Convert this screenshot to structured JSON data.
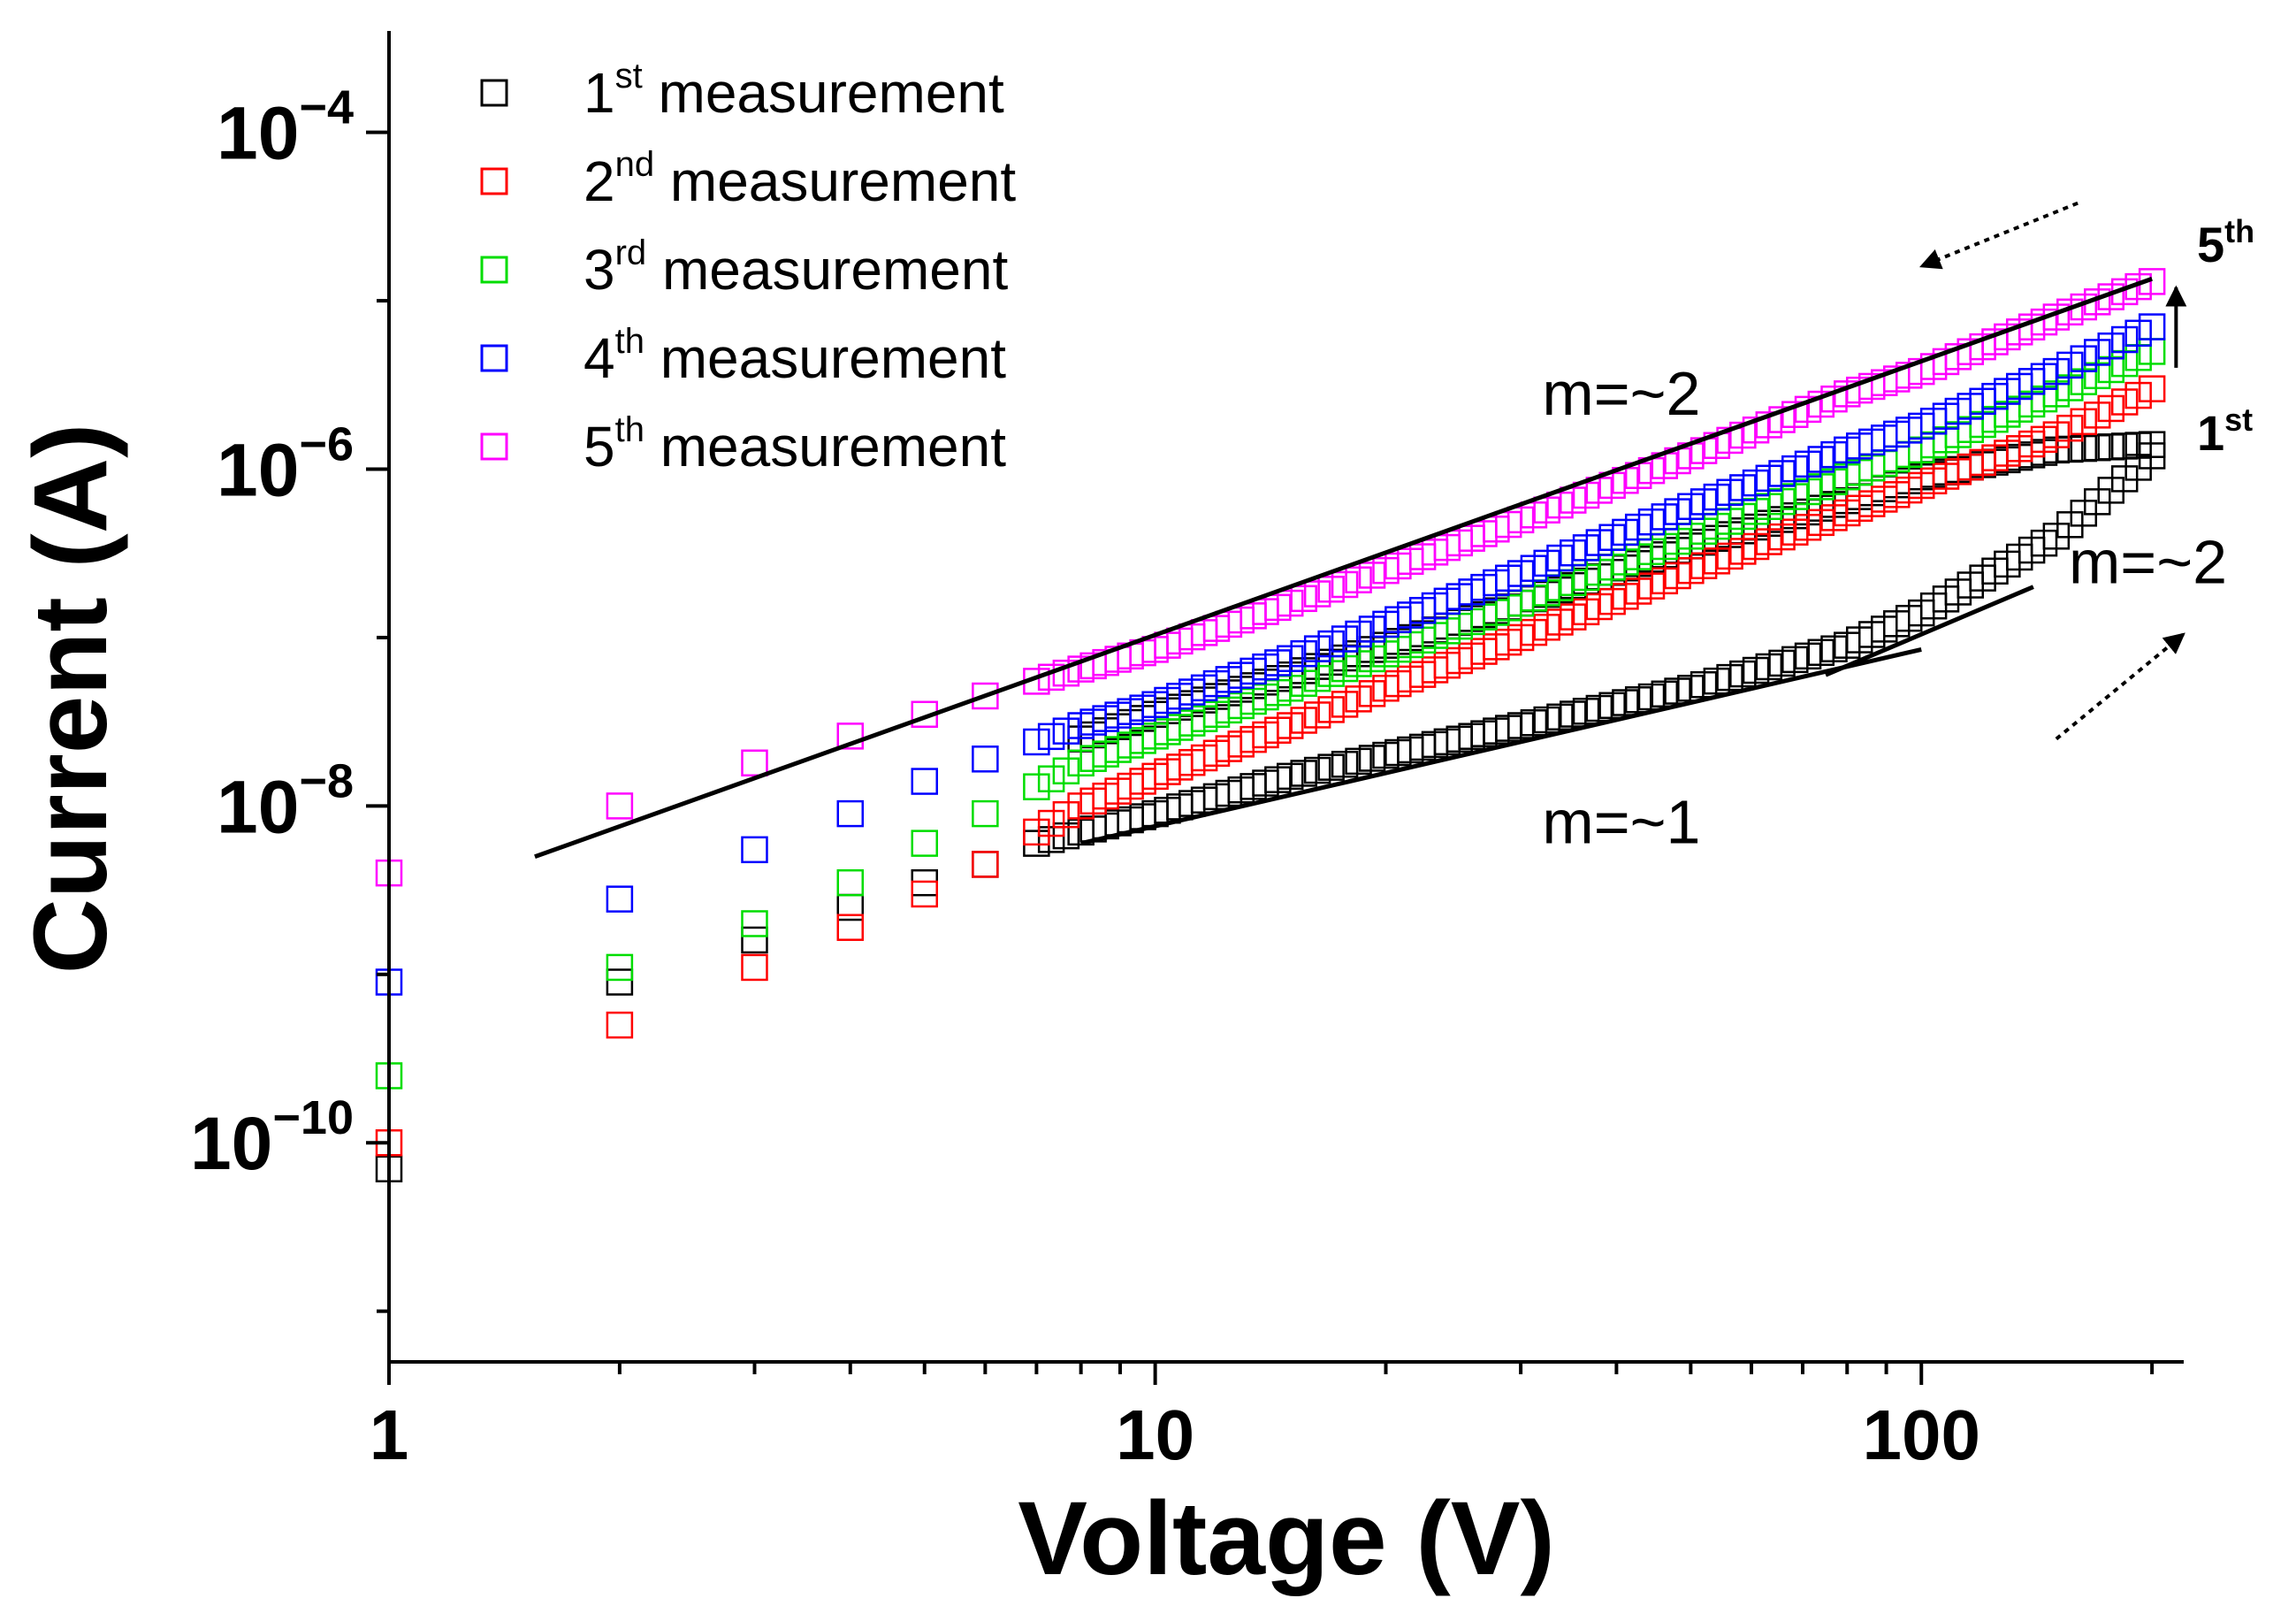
{
  "chart_data": {
    "type": "scatter",
    "title": "",
    "xlabel": "Voltage (V)",
    "ylabel": "Current (A)",
    "xscale": "log",
    "yscale": "log",
    "xlim": [
      1,
      220
    ],
    "ylim": [
      5e-12,
      0.0004
    ],
    "x_ticks": [
      {
        "value": 1,
        "label": "1"
      },
      {
        "value": 10,
        "label": "10"
      },
      {
        "value": 100,
        "label": "100"
      }
    ],
    "y_ticks": [
      {
        "value": 1e-10,
        "mantissa": "10",
        "exponent": "−10"
      },
      {
        "value": 1e-08,
        "mantissa": "10",
        "exponent": "−8"
      },
      {
        "value": 1e-06,
        "mantissa": "10",
        "exponent": "−6"
      },
      {
        "value": 0.0001,
        "mantissa": "10",
        "exponent": "−4"
      }
    ],
    "legend_position": "top-left",
    "marker": "open-square",
    "series": [
      {
        "name": "1st measurement",
        "num": "1",
        "sup": "st",
        "rest": " measurement",
        "color": "#000000",
        "x": [
          1,
          2,
          3,
          4,
          5,
          6,
          7,
          8,
          10,
          15,
          20,
          30,
          50,
          80,
          100,
          150,
          200,
          200,
          150,
          100,
          80,
          50,
          30,
          20,
          15,
          10,
          8
        ],
        "y": [
          7e-11,
          9e-10,
          1.6e-09,
          2.5e-09,
          3.5e-09,
          4.5e-09,
          6e-09,
          7e-09,
          9e-09,
          1.5e-08,
          2e-08,
          3e-08,
          5e-08,
          9e-08,
          1.4e-07,
          4e-07,
          1.2e-06,
          1.4e-06,
          1.3e-06,
          9e-07,
          6.5e-07,
          3.5e-07,
          1.6e-07,
          9e-08,
          6e-08,
          3.5e-08,
          2.5e-08
        ]
      },
      {
        "name": "2nd measurement",
        "num": "2",
        "sup": "nd",
        "rest": " measurement",
        "color": "#ff0000",
        "x": [
          1,
          2,
          3,
          4,
          5,
          6,
          7,
          8,
          10,
          15,
          20,
          30,
          50,
          80,
          100,
          150,
          200
        ],
        "y": [
          1e-10,
          5e-10,
          1.1e-09,
          1.9e-09,
          3e-09,
          4.5e-09,
          7e-09,
          1e-08,
          1.5e-08,
          3e-08,
          5e-08,
          1e-07,
          2.5e-07,
          5.5e-07,
          8e-07,
          1.6e-06,
          3e-06
        ]
      },
      {
        "name": "3rd measurement",
        "num": "3",
        "sup": "rd",
        "rest": " measurement",
        "color": "#00dd00",
        "x": [
          1,
          2,
          3,
          4,
          5,
          6,
          7,
          8,
          10,
          15,
          20,
          30,
          50,
          80,
          100,
          150,
          200
        ],
        "y": [
          2.5e-10,
          1.1e-09,
          2e-09,
          3.5e-09,
          6e-09,
          9e-09,
          1.3e-08,
          1.8e-08,
          2.6e-08,
          5e-08,
          8e-08,
          1.6e-07,
          4e-07,
          9e-07,
          1.3e-06,
          2.8e-06,
          5e-06
        ]
      },
      {
        "name": "4th measurement",
        "num": "4",
        "sup": "th",
        "rest": " measurement",
        "color": "#0000ff",
        "x": [
          1,
          2,
          3,
          4,
          5,
          6,
          7,
          8,
          10,
          15,
          20,
          30,
          50,
          80,
          100,
          150,
          200
        ],
        "y": [
          9e-10,
          2.8e-09,
          5.5e-09,
          9e-09,
          1.4e-08,
          1.9e-08,
          2.4e-08,
          3e-08,
          4e-08,
          7.5e-08,
          1.2e-07,
          2.4e-07,
          6e-07,
          1.3e-06,
          1.8e-06,
          3.8e-06,
          7e-06
        ]
      },
      {
        "name": "5th measurement",
        "num": "5",
        "sup": "th",
        "rest": " measurement",
        "color": "#ff00ff",
        "x": [
          1,
          2,
          3,
          4,
          5,
          6,
          7,
          8,
          10,
          15,
          20,
          30,
          50,
          80,
          100,
          150,
          200
        ],
        "y": [
          4e-09,
          1e-08,
          1.8e-08,
          2.6e-08,
          3.5e-08,
          4.5e-08,
          5.5e-08,
          6.5e-08,
          8.5e-08,
          1.6e-07,
          2.5e-07,
          5e-07,
          1.2e-06,
          2.8e-06,
          3.8e-06,
          8e-06,
          1.3e-05
        ]
      }
    ],
    "fit_lines": [
      {
        "name": "fit-5th-m2",
        "x": [
          1.55,
          200
        ],
        "y": [
          5e-09,
          1.35e-05
        ]
      },
      {
        "name": "fit-1st-m1",
        "x": [
          8,
          100
        ],
        "y": [
          6e-09,
          8.5e-08
        ]
      },
      {
        "name": "fit-1st-m2",
        "x": [
          75,
          140
        ],
        "y": [
          6e-08,
          2e-07
        ]
      }
    ],
    "annotations": [
      {
        "name": "m-equals-2-upper",
        "text": "m=~2",
        "x": 32,
        "y": 2.1e-06
      },
      {
        "name": "m-equals-1",
        "text": "m=~1",
        "x": 32,
        "y": 6e-09
      },
      {
        "name": "m-equals-2-right",
        "text": "m=~2",
        "x": 250,
        "y": 2.1e-07
      }
    ],
    "run_labels": [
      {
        "name": "label-5th",
        "num": "5",
        "sup": "th",
        "x": 250,
        "y": 1.7e-05
      },
      {
        "name": "label-1st",
        "num": "1",
        "sup": "st",
        "x": 250,
        "y": 1.3e-06
      }
    ],
    "arrows": [
      {
        "name": "arrow-sweep-down",
        "style": "dotted",
        "from": {
          "x": 160,
          "y": 3.8e-05
        },
        "to": {
          "x": 100,
          "y": 1.6e-05
        }
      },
      {
        "name": "arrow-sweep-up",
        "style": "dotted",
        "from": {
          "x": 150,
          "y": 2.5e-08
        },
        "to": {
          "x": 220,
          "y": 1.05e-07
        }
      },
      {
        "name": "arrow-increasing-runs",
        "style": "solid",
        "from": {
          "x": 215,
          "y": 4e-06
        },
        "to": {
          "x": 215,
          "y": 1.2e-05
        }
      }
    ]
  }
}
